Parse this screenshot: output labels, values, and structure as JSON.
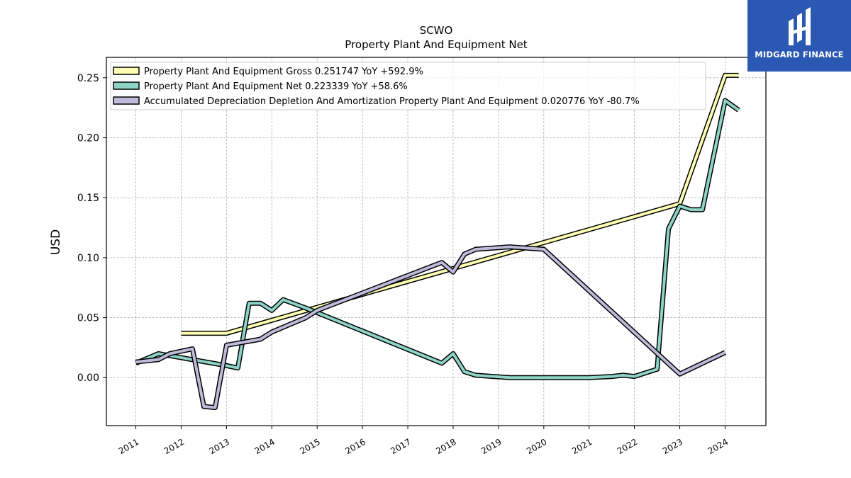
{
  "logo": {
    "text": "MIDGARD FINANCE"
  },
  "chart_data": {
    "type": "line",
    "title": "SCWO",
    "subtitle": "Property Plant And Equipment Net",
    "xlabel": "",
    "ylabel": "USD",
    "xlim": [
      2010.35,
      2024.9
    ],
    "ylim": [
      -0.04,
      0.267
    ],
    "x_ticks": [
      "2011",
      "2012",
      "2013",
      "2014",
      "2015",
      "2016",
      "2017",
      "2018",
      "2019",
      "2020",
      "2021",
      "2022",
      "2023",
      "2024"
    ],
    "y_ticks": [
      "0.00",
      "0.05",
      "0.10",
      "0.15",
      "0.20",
      "0.25"
    ],
    "y_tick_values": [
      0,
      0.05,
      0.1,
      0.15,
      0.2,
      0.25
    ],
    "grid": true,
    "legend_position": "top-left",
    "series": [
      {
        "name": "Property Plant And Equipment Gross",
        "legend_label": "Property Plant And Equipment Gross  0.251747 YoY +592.9%",
        "color": "#ffffb3",
        "points": [
          [
            2012.0,
            0.037
          ],
          [
            2013.0,
            0.037
          ],
          [
            2023.0,
            0.145
          ],
          [
            2024.0,
            0.252
          ],
          [
            2024.3,
            0.252
          ]
        ]
      },
      {
        "name": "Property Plant And Equipment Net",
        "legend_label": "Property Plant And Equipment Net  0.223339 YoY +58.6%",
        "color": "#8dd3c7",
        "points": [
          [
            2011.0,
            0.012
          ],
          [
            2011.5,
            0.02
          ],
          [
            2013.0,
            0.01
          ],
          [
            2013.25,
            0.008
          ],
          [
            2013.5,
            0.062
          ],
          [
            2013.75,
            0.062
          ],
          [
            2014.0,
            0.056
          ],
          [
            2014.25,
            0.065
          ],
          [
            2014.75,
            0.058
          ],
          [
            2017.75,
            0.012
          ],
          [
            2018.0,
            0.02
          ],
          [
            2018.25,
            0.005
          ],
          [
            2018.5,
            0.002
          ],
          [
            2019.25,
            0.0
          ],
          [
            2020.0,
            0.0
          ],
          [
            2021.0,
            0.0
          ],
          [
            2021.5,
            0.001
          ],
          [
            2021.75,
            0.002
          ],
          [
            2022.0,
            0.001
          ],
          [
            2022.5,
            0.007
          ],
          [
            2022.75,
            0.124
          ],
          [
            2023.0,
            0.143
          ],
          [
            2023.25,
            0.14
          ],
          [
            2023.5,
            0.14
          ],
          [
            2024.0,
            0.231
          ],
          [
            2024.3,
            0.223
          ]
        ]
      },
      {
        "name": "Accumulated Depreciation Depletion And Amortization Property Plant And Equipment",
        "legend_label": "Accumulated Depreciation Depletion And Amortization Property Plant And Equipment  0.020776 YoY -80.7%",
        "color": "#bebada",
        "points": [
          [
            2011.0,
            0.013
          ],
          [
            2011.5,
            0.015
          ],
          [
            2011.75,
            0.02
          ],
          [
            2012.25,
            0.024
          ],
          [
            2012.5,
            -0.024
          ],
          [
            2012.75,
            -0.025
          ],
          [
            2013.0,
            0.027
          ],
          [
            2013.75,
            0.032
          ],
          [
            2014.0,
            0.038
          ],
          [
            2014.75,
            0.05
          ],
          [
            2015.0,
            0.056
          ],
          [
            2017.75,
            0.096
          ],
          [
            2018.0,
            0.088
          ],
          [
            2018.25,
            0.103
          ],
          [
            2018.5,
            0.107
          ],
          [
            2019.25,
            0.109
          ],
          [
            2020.0,
            0.107
          ],
          [
            2023.0,
            0.003
          ],
          [
            2024.0,
            0.021
          ]
        ]
      }
    ]
  }
}
